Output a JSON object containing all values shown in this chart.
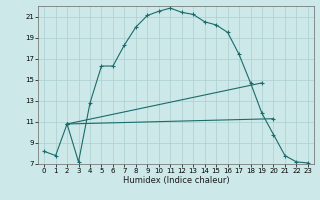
{
  "xlabel": "Humidex (Indice chaleur)",
  "bg_color": "#cde8e8",
  "grid_color": "#aacfcf",
  "line_color": "#1a6b6b",
  "xlim": [
    -0.5,
    23.5
  ],
  "ylim": [
    7,
    22
  ],
  "xticks": [
    0,
    1,
    2,
    3,
    4,
    5,
    6,
    7,
    8,
    9,
    10,
    11,
    12,
    13,
    14,
    15,
    16,
    17,
    18,
    19,
    20,
    21,
    22,
    23
  ],
  "yticks": [
    7,
    9,
    11,
    13,
    15,
    17,
    19,
    21
  ],
  "curve1_x": [
    0,
    1,
    2,
    3,
    4,
    5,
    6,
    7,
    8,
    9,
    10,
    11,
    12,
    13,
    14,
    15,
    16,
    17,
    18,
    19,
    20,
    21,
    22,
    23
  ],
  "curve1_y": [
    8.2,
    7.8,
    10.8,
    7.2,
    12.8,
    16.3,
    16.3,
    18.3,
    20.0,
    21.1,
    21.5,
    21.8,
    21.4,
    21.2,
    20.5,
    20.2,
    19.5,
    17.4,
    14.7,
    11.8,
    9.8,
    7.8,
    7.2,
    7.1
  ],
  "line2_x": [
    2,
    19
  ],
  "line2_y": [
    10.8,
    14.7
  ],
  "line3_x": [
    2,
    20
  ],
  "line3_y": [
    10.8,
    11.3
  ],
  "figwidth": 3.2,
  "figheight": 2.0,
  "dpi": 100
}
